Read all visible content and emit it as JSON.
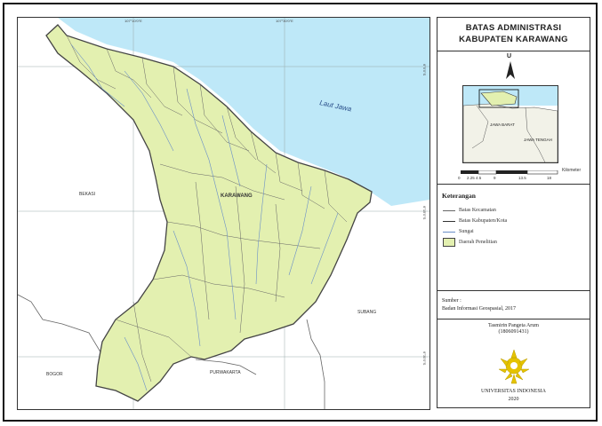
{
  "map": {
    "sea_label": "Laut Jawa",
    "center_label": "KARAWANG",
    "region_labels": [
      "BEKASI",
      "BOGOR",
      "PURWAKARTA",
      "SUBANG"
    ],
    "top_coords": [
      "107°10'0\"E",
      "107°30'0\"E"
    ],
    "right_coords": [
      "6°0'0\"S",
      "6°15'0\"S",
      "6°30'0\"S"
    ],
    "colors": {
      "study_area": "#E3F0B0",
      "sea": "#BEE8F8",
      "boundary": "#555555",
      "river": "#6A8FC8"
    }
  },
  "panel": {
    "title_line1": "BATAS ADMINISTRASI",
    "title_line2": "KABUPATEN KARAWANG",
    "north": "U",
    "inset_labels": [
      "JAWA BARAT",
      "JAWA TENGAH"
    ],
    "scale_ticks": [
      "0",
      "2.25",
      "4.5",
      "9",
      "13.5",
      "18"
    ],
    "scale_unit": "Kilometer",
    "legend": {
      "heading": "Keterangan",
      "items": [
        {
          "label": "Batas Kecamatan",
          "kind": "thin-line"
        },
        {
          "label": "Batas Kabupaten/Kota",
          "kind": "thick-line"
        },
        {
          "label": "Sungai",
          "kind": "river"
        },
        {
          "label": "Daerah Penelitian",
          "kind": "fill"
        }
      ]
    },
    "source_heading": "Sumber :",
    "source_text": "Badan Informasi Geospasial, 2017",
    "author_name": "Tasmirin Pangeta Arum",
    "author_id": "(1806091431)",
    "university": "UNIVERSITAS INDONESIA",
    "year": "2020"
  }
}
